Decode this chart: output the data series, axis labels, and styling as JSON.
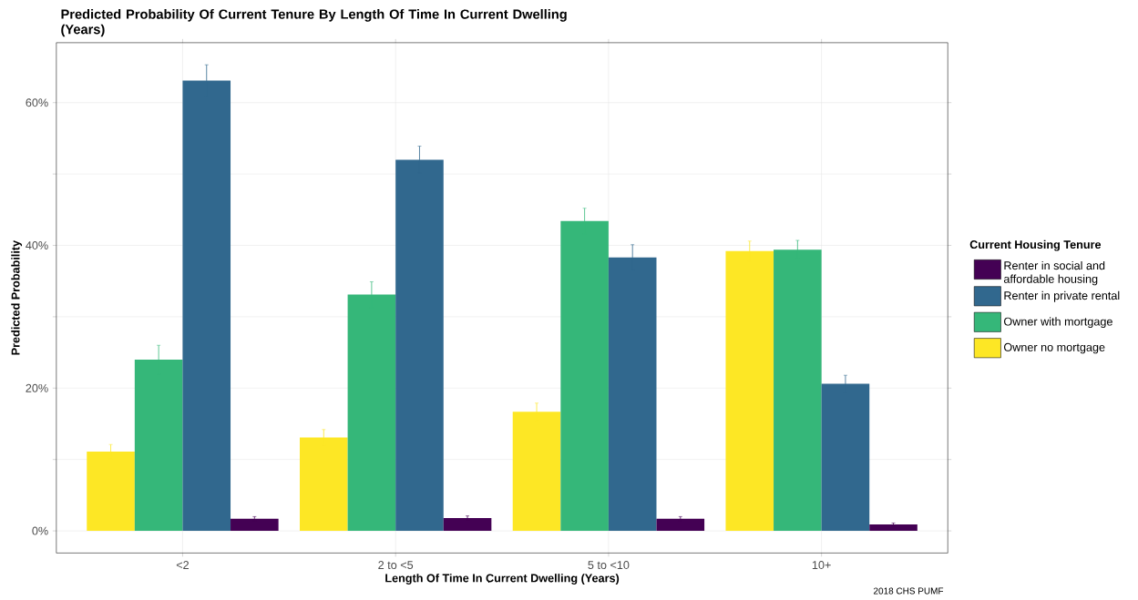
{
  "chart_data": {
    "type": "bar",
    "title": "Predicted Probability Of Current Tenure By Length Of Time In Current Dwelling (Years)",
    "xlabel": "Length Of Time In Current Dwelling (Years)",
    "ylabel": "Predicted Probability",
    "legend_title": "Current Housing Tenure",
    "annotations": [
      "2018 CHS PUMF"
    ],
    "categories": [
      "<2",
      "2 to <5",
      "5 to <10",
      "10+"
    ],
    "series": [
      {
        "name": "Owner no mortgage",
        "color": "#fde725",
        "values": [
          11.1,
          13.1,
          16.7,
          39.2
        ],
        "errors": [
          1.0,
          1.1,
          1.2,
          1.4
        ]
      },
      {
        "name": "Owner with mortgage",
        "color": "#35b779",
        "values": [
          24.0,
          33.1,
          43.4,
          39.4
        ],
        "errors": [
          2.0,
          1.8,
          1.8,
          1.3
        ]
      },
      {
        "name": "Renter in private rental",
        "color": "#31688e",
        "values": [
          63.1,
          52.0,
          38.3,
          20.6
        ],
        "errors": [
          2.2,
          1.9,
          1.8,
          1.2
        ]
      },
      {
        "name": "Renter in social and affordable housing",
        "color": "#440154",
        "values": [
          1.7,
          1.8,
          1.7,
          0.9
        ],
        "errors": [
          0.3,
          0.3,
          0.3,
          0.2
        ]
      }
    ],
    "ylim": [
      -3.1,
      68.4
    ],
    "yticks": [
      {
        "value": 0,
        "label": "0%"
      },
      {
        "value": 10,
        "label": null
      },
      {
        "value": 20,
        "label": "20%"
      },
      {
        "value": 30,
        "label": null
      },
      {
        "value": 40,
        "label": "40%"
      },
      {
        "value": 50,
        "label": null
      },
      {
        "value": 60,
        "label": "60%"
      }
    ],
    "grid": true,
    "legend": "right"
  }
}
